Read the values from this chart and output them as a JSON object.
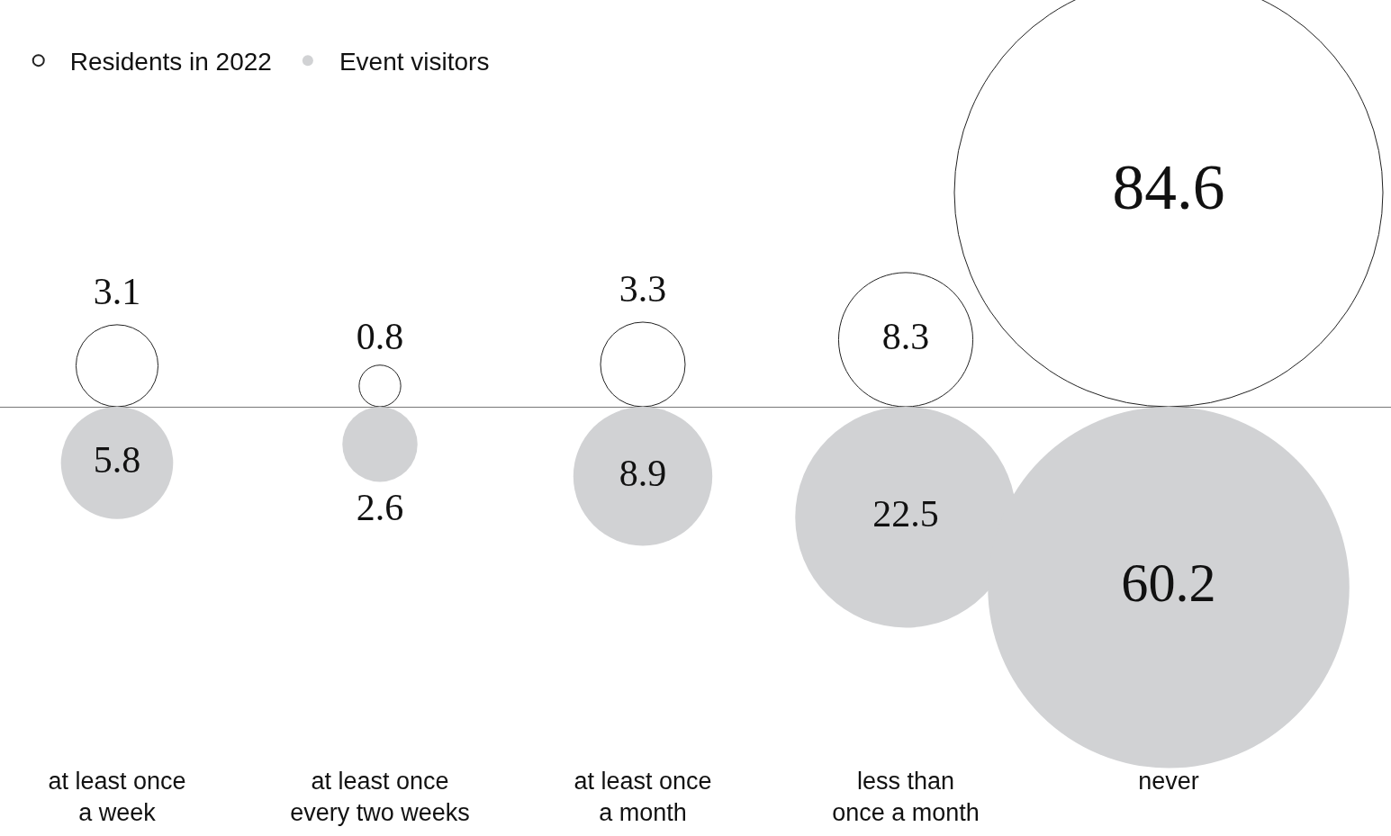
{
  "chart_data": {
    "type": "other",
    "categories": [
      "at least once\na week",
      "at least once\nevery two weeks",
      "at least once\na month",
      "less than\nonce a month",
      "never"
    ],
    "series": [
      {
        "name": "Residents in 2022",
        "color": "#ffffff",
        "values": [
          3.1,
          0.8,
          3.3,
          8.3,
          84.6
        ]
      },
      {
        "name": "Event visitors",
        "color": "#d1d2d4",
        "values": [
          5.8,
          2.6,
          8.9,
          22.5,
          60.2
        ]
      }
    ],
    "data_labels": true,
    "legend": "top left"
  }
}
